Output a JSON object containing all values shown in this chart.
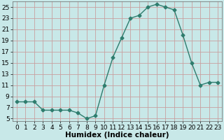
{
  "x": [
    0,
    1,
    2,
    3,
    4,
    5,
    6,
    7,
    8,
    9,
    10,
    11,
    12,
    13,
    14,
    15,
    16,
    17,
    18,
    19,
    20,
    21,
    22,
    23
  ],
  "y": [
    8,
    8,
    8,
    6.5,
    6.5,
    6.5,
    6.5,
    6,
    5,
    5.5,
    11,
    16,
    19.5,
    23,
    23.5,
    25,
    25.5,
    25,
    24.5,
    20,
    15,
    11,
    11.5,
    11.5
  ],
  "line_color": "#2e7d6e",
  "marker": "D",
  "marker_size": 2.5,
  "bg_color": "#c8e8e8",
  "grid_color": "#c8a0a0",
  "xlabel": "Humidex (Indice chaleur)",
  "xlim": [
    -0.5,
    23.5
  ],
  "ylim": [
    4.5,
    26
  ],
  "yticks": [
    5,
    7,
    9,
    11,
    13,
    15,
    17,
    19,
    21,
    23,
    25
  ],
  "xticks": [
    0,
    1,
    2,
    3,
    4,
    5,
    6,
    7,
    8,
    9,
    10,
    11,
    12,
    13,
    14,
    15,
    16,
    17,
    18,
    19,
    20,
    21,
    22,
    23
  ],
  "tick_fontsize": 6.5,
  "xlabel_fontsize": 7.5
}
